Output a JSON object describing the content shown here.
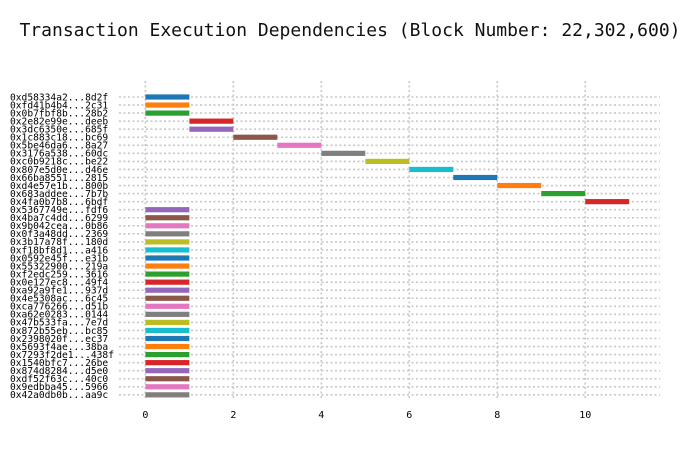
{
  "chart_data": {
    "type": "bar",
    "orientation": "horizontal",
    "title": "Transaction Execution Dependencies (Block Number: 22,302,600)",
    "xlabel": "",
    "ylabel": "",
    "xlim": [
      -0.6,
      11.7
    ],
    "xticks": [
      0,
      2,
      4,
      6,
      8,
      10
    ],
    "grid": true,
    "grid_style": "dotted",
    "color_cycle": [
      "#1f77b4",
      "#ff7f0e",
      "#2ca02c",
      "#d62728",
      "#9467bd",
      "#8c564b",
      "#e377c2",
      "#7f7f7f",
      "#bcbd22",
      "#17becf"
    ],
    "transactions": [
      {
        "label": "0xd58334a2...8d2f",
        "start": 0,
        "end": 1
      },
      {
        "label": "0xfd41b4b4...2c31",
        "start": 0,
        "end": 1
      },
      {
        "label": "0x0b7fbf8b...28b2",
        "start": 0,
        "end": 1
      },
      {
        "label": "0x2e82e99e...deeb",
        "start": 1,
        "end": 2
      },
      {
        "label": "0x3dc6350e...685f",
        "start": 1,
        "end": 2
      },
      {
        "label": "0x1c883c18...bc69",
        "start": 2,
        "end": 3
      },
      {
        "label": "0x5be46da6...8a27",
        "start": 3,
        "end": 4
      },
      {
        "label": "0x3176a538...60dc",
        "start": 4,
        "end": 5
      },
      {
        "label": "0xc0b9218c...be22",
        "start": 5,
        "end": 6
      },
      {
        "label": "0x807e5d0e...d46e",
        "start": 6,
        "end": 7
      },
      {
        "label": "0x66ba8551...2815",
        "start": 7,
        "end": 8
      },
      {
        "label": "0xd4e57e1b...800b",
        "start": 8,
        "end": 9
      },
      {
        "label": "0x683addee...7b7b",
        "start": 9,
        "end": 10
      },
      {
        "label": "0x4fa0b7b8...6bdf",
        "start": 10,
        "end": 11
      },
      {
        "label": "0x5367749e...fdf6",
        "start": 0,
        "end": 1
      },
      {
        "label": "0x4ba7c4dd...6299",
        "start": 0,
        "end": 1
      },
      {
        "label": "0x9b042cea...0b86",
        "start": 0,
        "end": 1
      },
      {
        "label": "0x0f3a48dd...2369",
        "start": 0,
        "end": 1
      },
      {
        "label": "0x3b17a78f...180d",
        "start": 0,
        "end": 1
      },
      {
        "label": "0xf18bf8d1...a416",
        "start": 0,
        "end": 1
      },
      {
        "label": "0x0592e45f...e31b",
        "start": 0,
        "end": 1
      },
      {
        "label": "0x55322900...219a",
        "start": 0,
        "end": 1
      },
      {
        "label": "0xf2edc259...3616",
        "start": 0,
        "end": 1
      },
      {
        "label": "0x0e127ec8...49f4",
        "start": 0,
        "end": 1
      },
      {
        "label": "0xa92a9fe1...937d",
        "start": 0,
        "end": 1
      },
      {
        "label": "0x4e5308ac...6c45",
        "start": 0,
        "end": 1
      },
      {
        "label": "0xca776266...d51b",
        "start": 0,
        "end": 1
      },
      {
        "label": "0xa62e0283...0144",
        "start": 0,
        "end": 1
      },
      {
        "label": "0x47b533fa...7e7d",
        "start": 0,
        "end": 1
      },
      {
        "label": "0x872b55eb...bc85",
        "start": 0,
        "end": 1
      },
      {
        "label": "0x2398020f...ec37",
        "start": 0,
        "end": 1
      },
      {
        "label": "0x5693f4ae...38ba",
        "start": 0,
        "end": 1
      },
      {
        "label": "0x7293f2de1...438f",
        "start": 0,
        "end": 1
      },
      {
        "label": "0x1540bfc7...26be",
        "start": 0,
        "end": 1
      },
      {
        "label": "0x874d8284...d5e0",
        "start": 0,
        "end": 1
      },
      {
        "label": "0xdf52f63c...40c0",
        "start": 0,
        "end": 1
      },
      {
        "label": "0x9edbba45...5966",
        "start": 0,
        "end": 1
      },
      {
        "label": "0x42a0db0b...aa9c",
        "start": 0,
        "end": 1
      }
    ]
  }
}
